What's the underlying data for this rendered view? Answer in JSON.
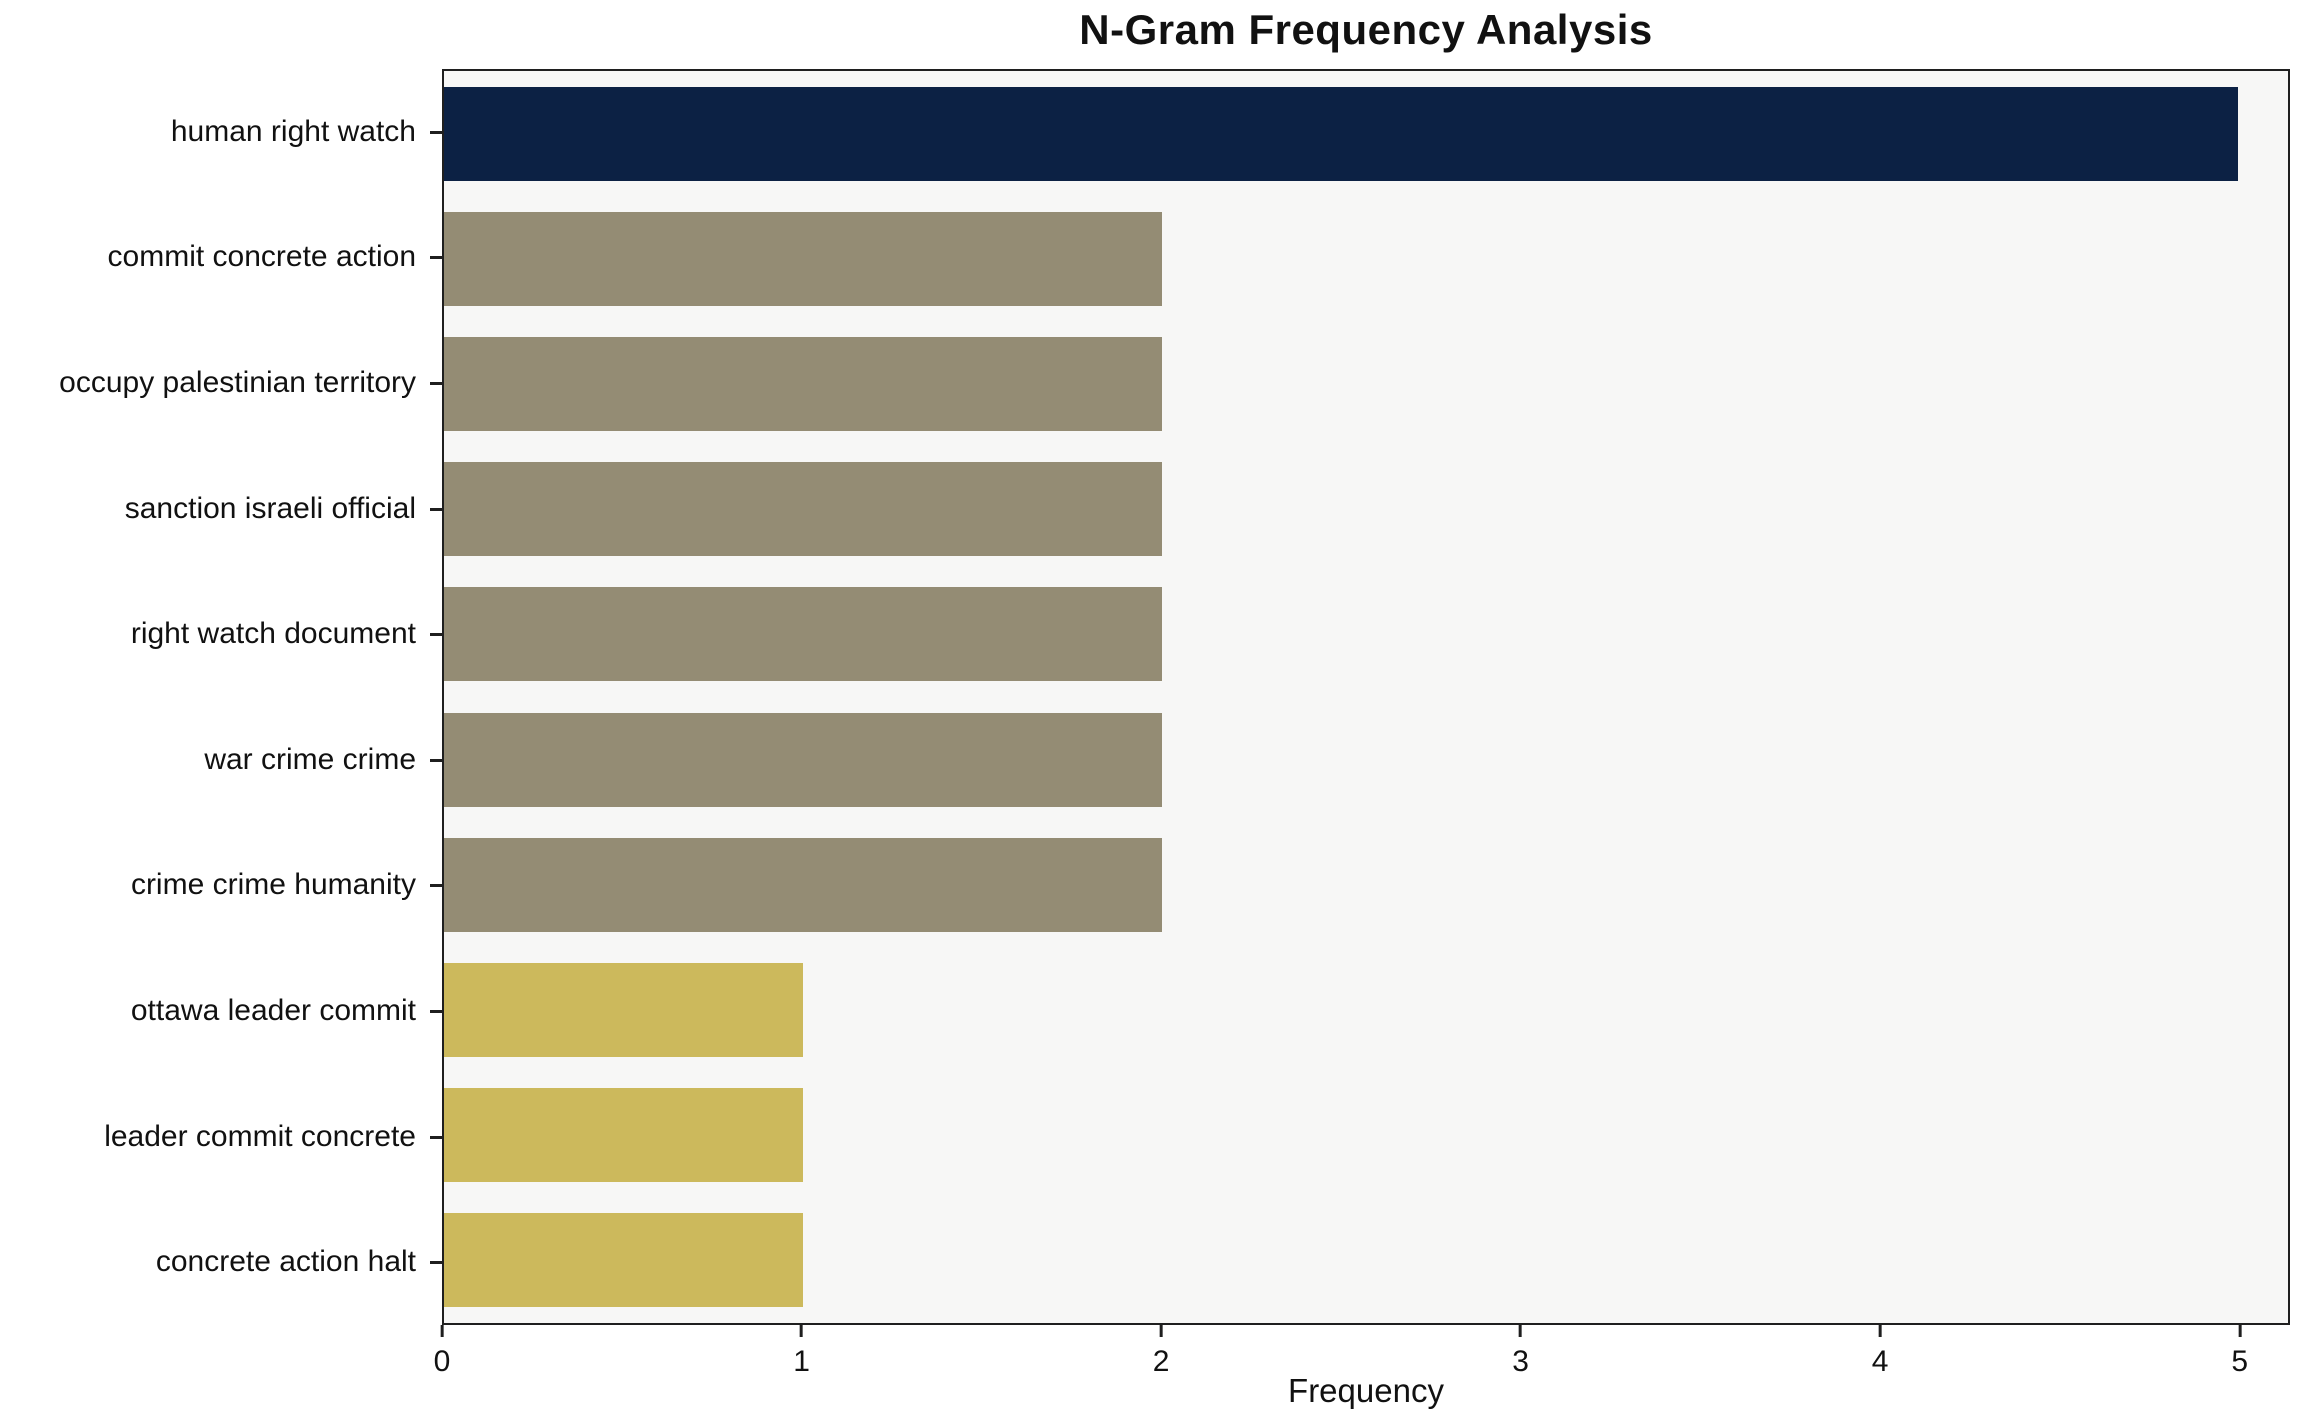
{
  "chart_data": {
    "type": "bar",
    "orientation": "horizontal",
    "title": "N-Gram Frequency Analysis",
    "xlabel": "Frequency",
    "ylabel": "",
    "categories": [
      "human right watch",
      "commit concrete action",
      "occupy palestinian territory",
      "sanction israeli official",
      "right watch document",
      "war crime crime",
      "crime crime humanity",
      "ottawa leader commit",
      "leader commit concrete",
      "concrete action halt"
    ],
    "values": [
      5,
      2,
      2,
      2,
      2,
      2,
      2,
      1,
      1,
      1
    ],
    "colors": [
      "#0c2144",
      "#948c74",
      "#948c74",
      "#948c74",
      "#948c74",
      "#948c74",
      "#948c74",
      "#ccb95c",
      "#ccb95c",
      "#ccb95c"
    ],
    "xlim": [
      0,
      5.14
    ],
    "xticks": [
      0,
      1,
      2,
      3,
      4,
      5
    ],
    "grid": false,
    "legend": "none",
    "plot_background": "#f7f7f6",
    "spine_color": "#1f1f1f"
  }
}
